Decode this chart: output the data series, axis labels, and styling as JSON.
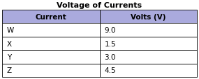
{
  "title": "Voltage of Currents",
  "col_headers": [
    "Current",
    "Volts (V)"
  ],
  "rows": [
    [
      "W",
      "9.0"
    ],
    [
      "X",
      "1.5"
    ],
    [
      "Y",
      "3.0"
    ],
    [
      "Z",
      "4.5"
    ]
  ],
  "header_bg": "#aaaadd",
  "header_text_color": "#000000",
  "row_bg": "#ffffff",
  "border_color": "#000000",
  "title_fontsize": 8,
  "header_fontsize": 7.5,
  "cell_fontsize": 7.5,
  "fig_width": 2.85,
  "fig_height": 1.15,
  "fig_dpi": 100
}
